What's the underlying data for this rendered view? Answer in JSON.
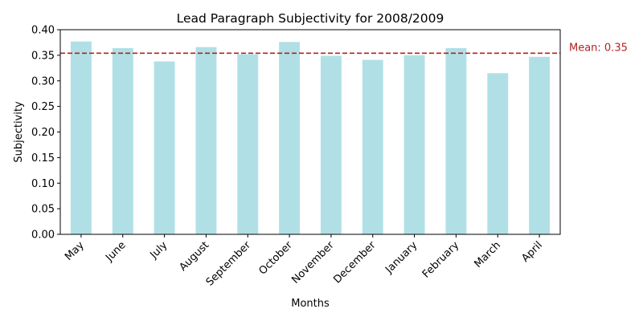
{
  "chart_data": {
    "type": "bar",
    "title": "Lead Paragraph Subjectivity for 2008/2009",
    "xlabel": "Months",
    "ylabel": "Subjectivity",
    "categories": [
      "May",
      "June",
      "July",
      "August",
      "September",
      "October",
      "November",
      "December",
      "January",
      "February",
      "March",
      "April"
    ],
    "values": [
      0.377,
      0.364,
      0.338,
      0.366,
      0.352,
      0.376,
      0.349,
      0.341,
      0.35,
      0.364,
      0.315,
      0.347
    ],
    "ylim": [
      0,
      0.4
    ],
    "yticks": [
      "0.00",
      "0.05",
      "0.10",
      "0.15",
      "0.20",
      "0.25",
      "0.30",
      "0.35",
      "0.40"
    ],
    "grid": false,
    "bar_color": "#b0e0e6",
    "mean": {
      "value": 0.354,
      "label": "Mean: 0.35",
      "color": "#b22222",
      "style": "dashed"
    }
  }
}
